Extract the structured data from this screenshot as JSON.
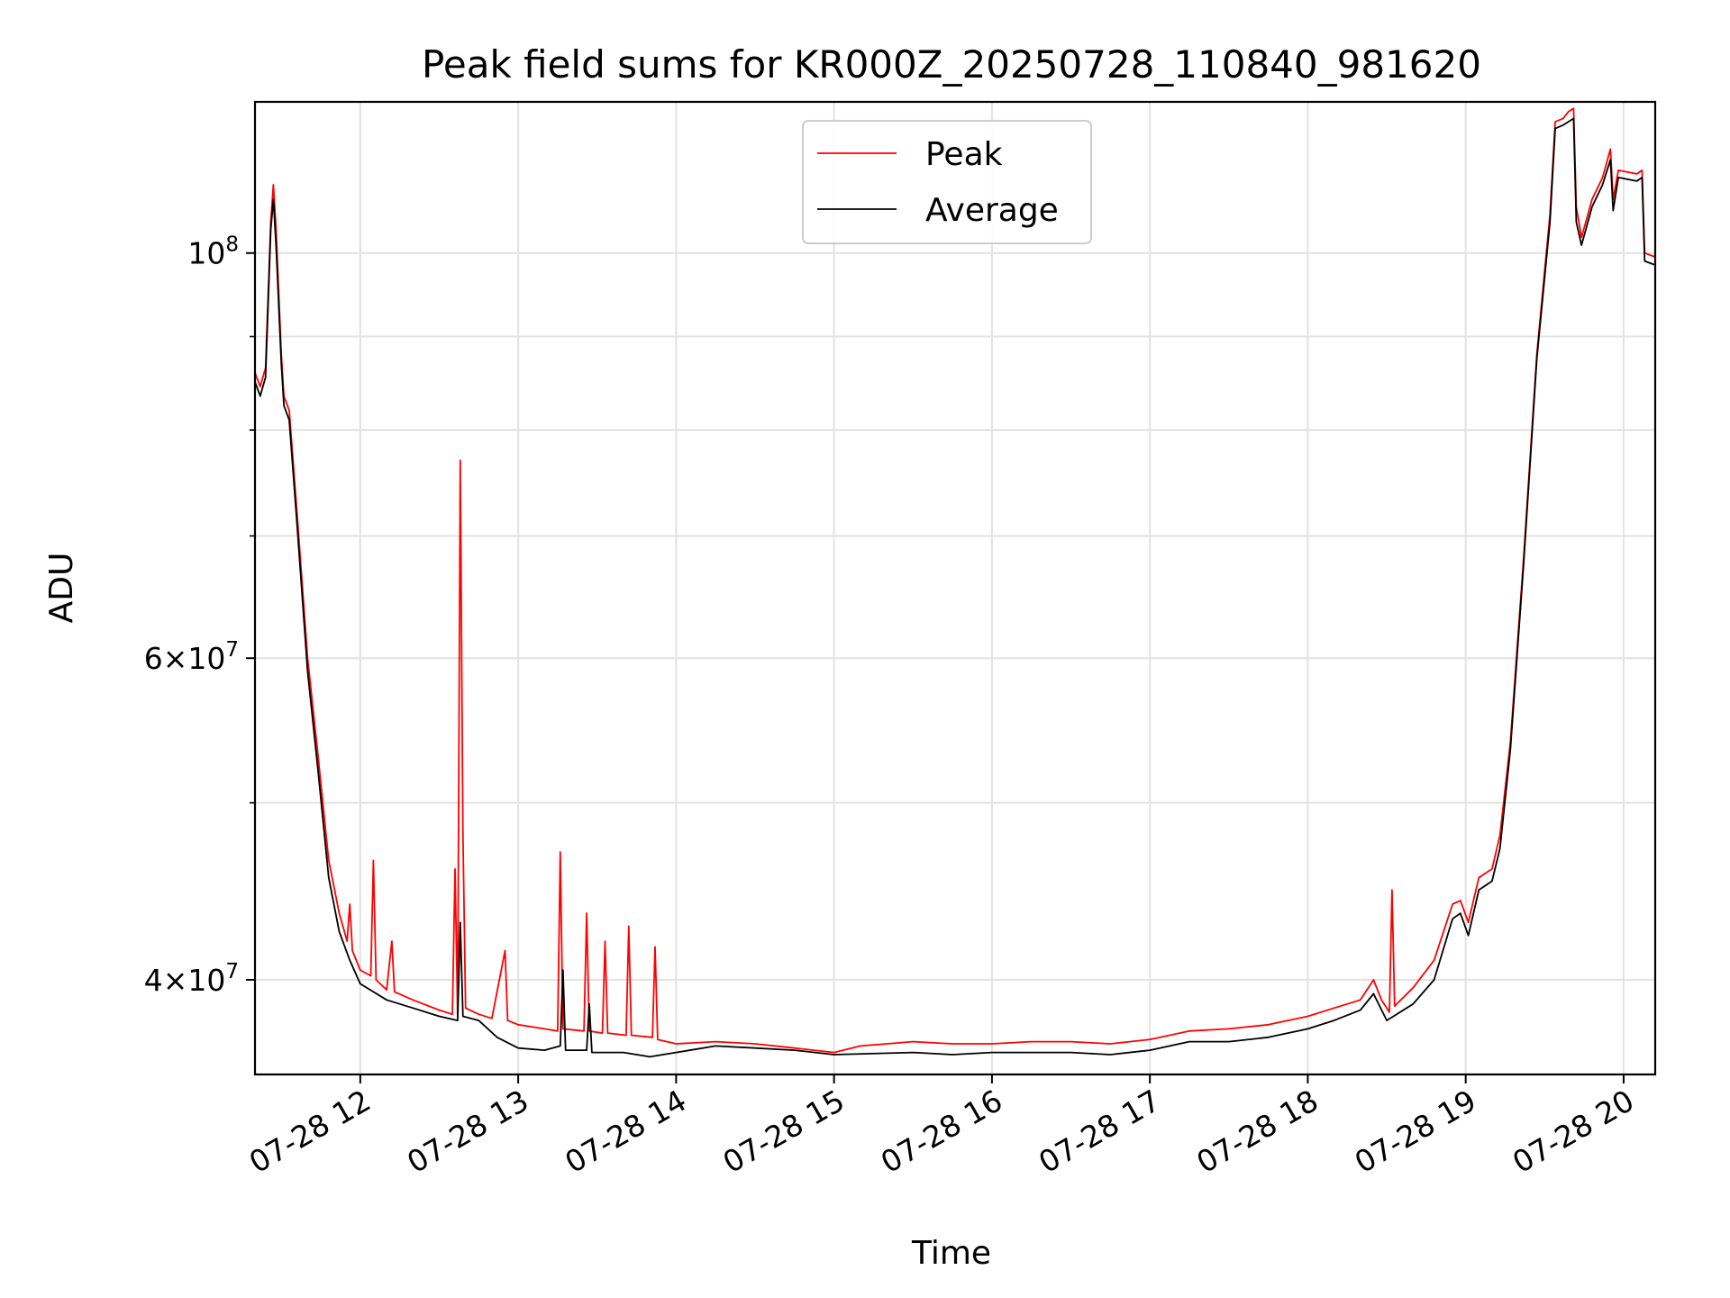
{
  "chart_data": {
    "type": "line",
    "title": "Peak field sums for KR000Z_20250728_110840_981620",
    "xlabel": "Time",
    "ylabel": "ADU",
    "y_scale": "log",
    "grid": true,
    "legend_placement": "upper center",
    "xlim": [
      "2025-07-28 11:20",
      "2025-07-28 20:12"
    ],
    "ylim": [
      35500000,
      121000000
    ],
    "x_tick_labels": [
      "07-28 12",
      "07-28 13",
      "07-28 14",
      "07-28 15",
      "07-28 16",
      "07-28 17",
      "07-28 18",
      "07-28 19",
      "07-28 20"
    ],
    "x_ticks": [
      "2025-07-28 12:00",
      "2025-07-28 13:00",
      "2025-07-28 14:00",
      "2025-07-28 15:00",
      "2025-07-28 16:00",
      "2025-07-28 17:00",
      "2025-07-28 18:00",
      "2025-07-28 19:00",
      "2025-07-28 20:00"
    ],
    "y_major_ticks": [
      {
        "value": 40000000,
        "mantissa": "4",
        "exponent": "7"
      },
      {
        "value": 60000000,
        "mantissa": "6",
        "exponent": "7"
      },
      {
        "value": 100000000,
        "mantissa": "",
        "exponent": "8"
      }
    ],
    "y_minor_ticks": [
      50000000,
      70000000,
      80000000,
      90000000
    ],
    "series": [
      {
        "name": "Peak",
        "color": "#ff0000",
        "points": [
          [
            "2025-07-28 11:20",
            86000000
          ],
          [
            "2025-07-28 11:22",
            84500000
          ],
          [
            "2025-07-28 11:24",
            86500000
          ],
          [
            "2025-07-28 11:26",
            104000000
          ],
          [
            "2025-07-28 11:27",
            109000000
          ],
          [
            "2025-07-28 11:28",
            103000000
          ],
          [
            "2025-07-28 11:30",
            88000000
          ],
          [
            "2025-07-28 11:31",
            83500000
          ],
          [
            "2025-07-28 11:33",
            82000000
          ],
          [
            "2025-07-28 11:36",
            72000000
          ],
          [
            "2025-07-28 11:40",
            60000000
          ],
          [
            "2025-07-28 11:44",
            53000000
          ],
          [
            "2025-07-28 11:48",
            46500000
          ],
          [
            "2025-07-28 11:52",
            43500000
          ],
          [
            "2025-07-28 11:55",
            42000000
          ],
          [
            "2025-07-28 11:56",
            44000000
          ],
          [
            "2025-07-28 11:57",
            41500000
          ],
          [
            "2025-07-28 12:00",
            40500000
          ],
          [
            "2025-07-28 12:04",
            40200000
          ],
          [
            "2025-07-28 12:05",
            46500000
          ],
          [
            "2025-07-28 12:06",
            40000000
          ],
          [
            "2025-07-28 12:10",
            39500000
          ],
          [
            "2025-07-28 12:12",
            42000000
          ],
          [
            "2025-07-28 12:13",
            39400000
          ],
          [
            "2025-07-28 12:20",
            39000000
          ],
          [
            "2025-07-28 12:30",
            38500000
          ],
          [
            "2025-07-28 12:35",
            38300000
          ],
          [
            "2025-07-28 12:36",
            46000000
          ],
          [
            "2025-07-28 12:37",
            38200000
          ],
          [
            "2025-07-28 12:38",
            77000000
          ],
          [
            "2025-07-28 12:39",
            48000000
          ],
          [
            "2025-07-28 12:40",
            38600000
          ],
          [
            "2025-07-28 12:45",
            38300000
          ],
          [
            "2025-07-28 12:50",
            38100000
          ],
          [
            "2025-07-28 12:55",
            41500000
          ],
          [
            "2025-07-28 12:56",
            38000000
          ],
          [
            "2025-07-28 13:00",
            37800000
          ],
          [
            "2025-07-28 13:10",
            37600000
          ],
          [
            "2025-07-28 13:15",
            37500000
          ],
          [
            "2025-07-28 13:16",
            47000000
          ],
          [
            "2025-07-28 13:17",
            37600000
          ],
          [
            "2025-07-28 13:25",
            37500000
          ],
          [
            "2025-07-28 13:26",
            43500000
          ],
          [
            "2025-07-28 13:27",
            37500000
          ],
          [
            "2025-07-28 13:32",
            37400000
          ],
          [
            "2025-07-28 13:33",
            42000000
          ],
          [
            "2025-07-28 13:34",
            37400000
          ],
          [
            "2025-07-28 13:41",
            37300000
          ],
          [
            "2025-07-28 13:42",
            42800000
          ],
          [
            "2025-07-28 13:43",
            37300000
          ],
          [
            "2025-07-28 13:51",
            37200000
          ],
          [
            "2025-07-28 13:52",
            41700000
          ],
          [
            "2025-07-28 13:53",
            37100000
          ],
          [
            "2025-07-28 14:00",
            36900000
          ],
          [
            "2025-07-28 14:15",
            37000000
          ],
          [
            "2025-07-28 14:30",
            36900000
          ],
          [
            "2025-07-28 14:45",
            36700000
          ],
          [
            "2025-07-28 15:00",
            36500000
          ],
          [
            "2025-07-28 15:10",
            36800000
          ],
          [
            "2025-07-28 15:30",
            37000000
          ],
          [
            "2025-07-28 15:45",
            36900000
          ],
          [
            "2025-07-28 16:00",
            36900000
          ],
          [
            "2025-07-28 16:15",
            37000000
          ],
          [
            "2025-07-28 16:30",
            37000000
          ],
          [
            "2025-07-28 16:45",
            36900000
          ],
          [
            "2025-07-28 17:00",
            37100000
          ],
          [
            "2025-07-28 17:15",
            37500000
          ],
          [
            "2025-07-28 17:30",
            37600000
          ],
          [
            "2025-07-28 17:45",
            37800000
          ],
          [
            "2025-07-28 18:00",
            38200000
          ],
          [
            "2025-07-28 18:10",
            38600000
          ],
          [
            "2025-07-28 18:20",
            39000000
          ],
          [
            "2025-07-28 18:25",
            40000000
          ],
          [
            "2025-07-28 18:28",
            39000000
          ],
          [
            "2025-07-28 18:31",
            38400000
          ],
          [
            "2025-07-28 18:32",
            44800000
          ],
          [
            "2025-07-28 18:33",
            38700000
          ],
          [
            "2025-07-28 18:40",
            39600000
          ],
          [
            "2025-07-28 18:48",
            41000000
          ],
          [
            "2025-07-28 18:55",
            44000000
          ],
          [
            "2025-07-28 18:58",
            44200000
          ],
          [
            "2025-07-28 19:01",
            43000000
          ],
          [
            "2025-07-28 19:05",
            45500000
          ],
          [
            "2025-07-28 19:10",
            46000000
          ],
          [
            "2025-07-28 19:13",
            48000000
          ],
          [
            "2025-07-28 19:17",
            54000000
          ],
          [
            "2025-07-28 19:22",
            68000000
          ],
          [
            "2025-07-28 19:27",
            88000000
          ],
          [
            "2025-07-28 19:32",
            105000000
          ],
          [
            "2025-07-28 19:34",
            118000000
          ],
          [
            "2025-07-28 19:37",
            118500000
          ],
          [
            "2025-07-28 19:39",
            119500000
          ],
          [
            "2025-07-28 19:41",
            120000000
          ],
          [
            "2025-07-28 19:42",
            106000000
          ],
          [
            "2025-07-28 19:44",
            102000000
          ],
          [
            "2025-07-28 19:48",
            107000000
          ],
          [
            "2025-07-28 19:52",
            110000000
          ],
          [
            "2025-07-28 19:55",
            114000000
          ],
          [
            "2025-07-28 19:56",
            107000000
          ],
          [
            "2025-07-28 19:58",
            111000000
          ],
          [
            "2025-07-28 20:05",
            110500000
          ],
          [
            "2025-07-28 20:07",
            111000000
          ],
          [
            "2025-07-28 20:08",
            100000000
          ],
          [
            "2025-07-28 20:12",
            99500000
          ]
        ]
      },
      {
        "name": "Average",
        "color": "#000000",
        "points": [
          [
            "2025-07-28 11:20",
            85000000
          ],
          [
            "2025-07-28 11:22",
            83500000
          ],
          [
            "2025-07-28 11:24",
            85500000
          ],
          [
            "2025-07-28 11:26",
            103000000
          ],
          [
            "2025-07-28 11:27",
            107000000
          ],
          [
            "2025-07-28 11:28",
            101000000
          ],
          [
            "2025-07-28 11:30",
            87000000
          ],
          [
            "2025-07-28 11:31",
            82500000
          ],
          [
            "2025-07-28 11:33",
            81000000
          ],
          [
            "2025-07-28 11:36",
            71000000
          ],
          [
            "2025-07-28 11:40",
            59000000
          ],
          [
            "2025-07-28 11:44",
            52000000
          ],
          [
            "2025-07-28 11:48",
            45500000
          ],
          [
            "2025-07-28 11:52",
            42500000
          ],
          [
            "2025-07-28 11:56",
            41000000
          ],
          [
            "2025-07-28 12:00",
            39800000
          ],
          [
            "2025-07-28 12:10",
            39000000
          ],
          [
            "2025-07-28 12:20",
            38600000
          ],
          [
            "2025-07-28 12:30",
            38200000
          ],
          [
            "2025-07-28 12:37",
            38000000
          ],
          [
            "2025-07-28 12:38",
            43000000
          ],
          [
            "2025-07-28 12:39",
            38200000
          ],
          [
            "2025-07-28 12:45",
            38000000
          ],
          [
            "2025-07-28 12:52",
            37200000
          ],
          [
            "2025-07-28 13:00",
            36700000
          ],
          [
            "2025-07-28 13:10",
            36600000
          ],
          [
            "2025-07-28 13:16",
            36800000
          ],
          [
            "2025-07-28 13:17",
            40500000
          ],
          [
            "2025-07-28 13:18",
            36600000
          ],
          [
            "2025-07-28 13:26",
            36600000
          ],
          [
            "2025-07-28 13:27",
            38800000
          ],
          [
            "2025-07-28 13:28",
            36500000
          ],
          [
            "2025-07-28 13:40",
            36500000
          ],
          [
            "2025-07-28 13:50",
            36300000
          ],
          [
            "2025-07-28 14:00",
            36500000
          ],
          [
            "2025-07-28 14:15",
            36800000
          ],
          [
            "2025-07-28 14:30",
            36700000
          ],
          [
            "2025-07-28 14:45",
            36600000
          ],
          [
            "2025-07-28 15:00",
            36400000
          ],
          [
            "2025-07-28 15:30",
            36500000
          ],
          [
            "2025-07-28 15:45",
            36400000
          ],
          [
            "2025-07-28 16:00",
            36500000
          ],
          [
            "2025-07-28 16:30",
            36500000
          ],
          [
            "2025-07-28 16:45",
            36400000
          ],
          [
            "2025-07-28 17:00",
            36600000
          ],
          [
            "2025-07-28 17:15",
            37000000
          ],
          [
            "2025-07-28 17:30",
            37000000
          ],
          [
            "2025-07-28 17:45",
            37200000
          ],
          [
            "2025-07-28 18:00",
            37600000
          ],
          [
            "2025-07-28 18:10",
            38000000
          ],
          [
            "2025-07-28 18:20",
            38500000
          ],
          [
            "2025-07-28 18:25",
            39300000
          ],
          [
            "2025-07-28 18:30",
            38000000
          ],
          [
            "2025-07-28 18:40",
            38800000
          ],
          [
            "2025-07-28 18:48",
            40000000
          ],
          [
            "2025-07-28 18:55",
            43200000
          ],
          [
            "2025-07-28 18:58",
            43500000
          ],
          [
            "2025-07-28 19:01",
            42300000
          ],
          [
            "2025-07-28 19:05",
            44800000
          ],
          [
            "2025-07-28 19:10",
            45300000
          ],
          [
            "2025-07-28 19:13",
            47200000
          ],
          [
            "2025-07-28 19:17",
            53500000
          ],
          [
            "2025-07-28 19:22",
            67500000
          ],
          [
            "2025-07-28 19:27",
            87500000
          ],
          [
            "2025-07-28 19:32",
            104000000
          ],
          [
            "2025-07-28 19:34",
            117000000
          ],
          [
            "2025-07-28 19:37",
            117500000
          ],
          [
            "2025-07-28 19:39",
            118000000
          ],
          [
            "2025-07-28 19:41",
            118500000
          ],
          [
            "2025-07-28 19:42",
            104000000
          ],
          [
            "2025-07-28 19:44",
            101000000
          ],
          [
            "2025-07-28 19:48",
            106000000
          ],
          [
            "2025-07-28 19:52",
            109000000
          ],
          [
            "2025-07-28 19:55",
            112500000
          ],
          [
            "2025-07-28 19:56",
            105500000
          ],
          [
            "2025-07-28 19:58",
            110000000
          ],
          [
            "2025-07-28 20:05",
            109500000
          ],
          [
            "2025-07-28 20:07",
            110000000
          ],
          [
            "2025-07-28 20:08",
            99000000
          ],
          [
            "2025-07-28 20:12",
            98500000
          ]
        ]
      }
    ]
  }
}
